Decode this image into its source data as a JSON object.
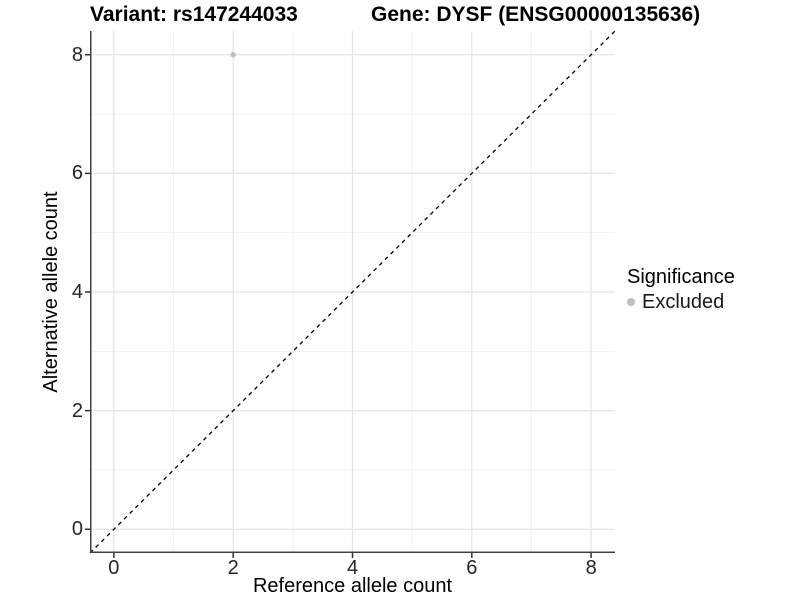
{
  "chart_data": {
    "type": "scatter",
    "title_left": "Variant: rs147244033",
    "title_right": "Gene: DYSF (ENSG00000135636)",
    "xlabel": "Reference allele count",
    "ylabel": "Alternative allele count",
    "xlim": [
      -0.4,
      8.4
    ],
    "ylim": [
      -0.4,
      8.4
    ],
    "x_ticks": [
      0,
      2,
      4,
      6,
      8
    ],
    "y_ticks": [
      0,
      2,
      4,
      6,
      8
    ],
    "x_minor_ticks": [
      1,
      3,
      5,
      7
    ],
    "y_minor_ticks": [
      1,
      3,
      5,
      7
    ],
    "grid": true,
    "series": [
      {
        "name": "Excluded",
        "color": "#bebebe",
        "points": [
          {
            "x": 2,
            "y": 8
          }
        ],
        "point_radius": 2.7
      }
    ],
    "reference_line": {
      "type": "identity",
      "from": [
        -0.4,
        -0.4
      ],
      "to": [
        8.4,
        8.4
      ],
      "style": "dashed",
      "color": "#000000"
    },
    "legend": {
      "title": "Significance",
      "position": "right",
      "items": [
        {
          "label": "Excluded",
          "color": "#bebebe"
        }
      ]
    }
  },
  "colors": {
    "grid_major": "#e4e4e4",
    "grid_minor": "#f1f1f1",
    "axis_line": "#404040",
    "tick_mark": "#333333",
    "tick_label": "#262626",
    "background": "#ffffff"
  }
}
